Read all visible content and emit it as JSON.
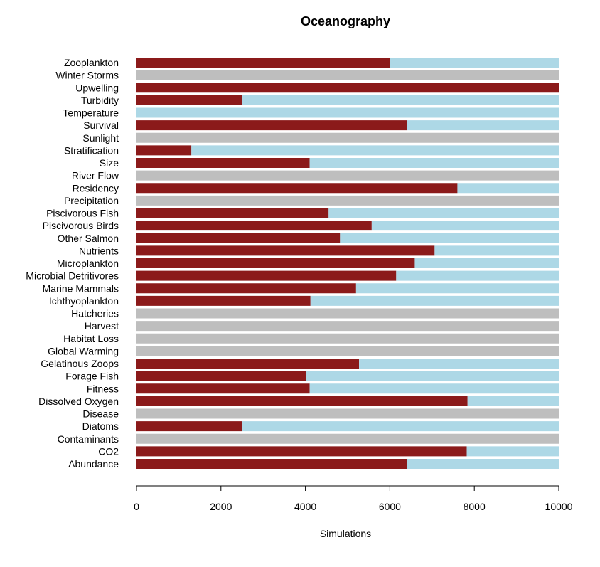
{
  "chart_data": {
    "type": "bar",
    "orientation": "horizontal",
    "stacked": true,
    "title": "Oceanography",
    "xlabel": "Simulations",
    "ylabel": "",
    "xlim": [
      0,
      10000
    ],
    "xticks": [
      0,
      2000,
      4000,
      6000,
      8000,
      10000
    ],
    "grid": false,
    "colors": {
      "primary": "#8B1A1A",
      "remainder": "#ADD8E6",
      "empty": "#BEBEBE"
    },
    "categories": [
      "Zooplankton",
      "Winter Storms",
      "Upwelling",
      "Turbidity",
      "Temperature",
      "Survival",
      "Sunlight",
      "Stratification",
      "Size",
      "River Flow",
      "Residency",
      "Precipitation",
      "Piscivorous Fish",
      "Piscivorous Birds",
      "Other Salmon",
      "Nutrients",
      "Microplankton",
      "Microbial Detritivores",
      "Marine Mammals",
      "Ichthyoplankton",
      "Hatcheries",
      "Harvest",
      "Habitat Loss",
      "Global Warming",
      "Gelatinous Zoops",
      "Forage Fish",
      "Fitness",
      "Dissolved Oxygen",
      "Disease",
      "Diatoms",
      "Contaminants",
      "CO2",
      "Abundance"
    ],
    "series": [
      {
        "values": [
          6000,
          null,
          10000,
          2500,
          0,
          6400,
          null,
          1300,
          4100,
          null,
          7600,
          null,
          4550,
          5570,
          4820,
          7060,
          6590,
          6150,
          5200,
          4120,
          null,
          null,
          null,
          null,
          5270,
          4020,
          4100,
          7840,
          null,
          2500,
          null,
          7820,
          6400
        ]
      },
      {
        "values": [
          4000,
          null,
          0,
          7500,
          10000,
          3600,
          null,
          8700,
          5900,
          null,
          2400,
          null,
          5450,
          4430,
          5180,
          2940,
          3410,
          3850,
          4800,
          5880,
          null,
          null,
          null,
          null,
          4730,
          5980,
          5900,
          2160,
          null,
          7500,
          null,
          2180,
          3600
        ]
      }
    ],
    "empty_value": 10000
  }
}
